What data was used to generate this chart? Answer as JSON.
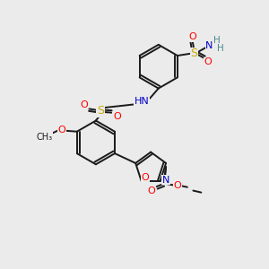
{
  "background_color": "#ebebeb",
  "bond_color": "#1a1a1a",
  "atom_colors": {
    "O": "#ff0000",
    "N": "#0000cc",
    "S": "#ccaa00",
    "H": "#4a8a8a",
    "C": "#1a1a1a"
  },
  "figsize": [
    3.0,
    3.0
  ],
  "dpi": 100
}
